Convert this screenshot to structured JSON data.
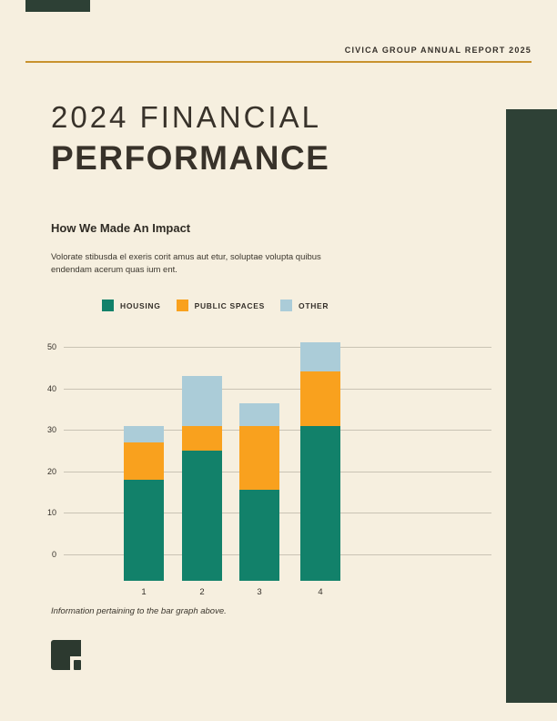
{
  "page": {
    "background": "#f6efdf",
    "accent_gold": "#c8922e",
    "dark_green": "#2e4136",
    "text_dark": "#35302a"
  },
  "header": {
    "report_label": "CIVICA GROUP ANNUAL REPORT 2025"
  },
  "title": {
    "line1": "2024 FINANCIAL",
    "line2": "PERFORMANCE"
  },
  "impact": {
    "heading": "How We Made An Impact",
    "body": "Volorate stibusda el exeris corit amus aut etur, soluptae volupta quibus endendam acerum quas ium ent.",
    "caption": "Information pertaining to the bar graph above."
  },
  "footer": {
    "logo_icon": "civica-logo-mark"
  },
  "chart_data": {
    "type": "bar",
    "stacked": true,
    "title": "",
    "xlabel": "",
    "ylabel": "",
    "categories": [
      "1",
      "2",
      "3",
      "4"
    ],
    "series": [
      {
        "name": "HOUSING",
        "color": "#12816a",
        "values": [
          18,
          25,
          15.5,
          31
        ]
      },
      {
        "name": "PUBLIC SPACES",
        "color": "#f9a11e",
        "values": [
          9,
          6,
          15.5,
          13
        ]
      },
      {
        "name": "OTHER",
        "color": "#abccd8",
        "values": [
          4,
          12,
          5.5,
          7
        ]
      }
    ],
    "totals": [
      31,
      43,
      36.5,
      51
    ],
    "ylim": [
      0,
      50
    ],
    "yticks": [
      0,
      10,
      20,
      30,
      40,
      50
    ],
    "grid": true,
    "legend_position": "top"
  }
}
